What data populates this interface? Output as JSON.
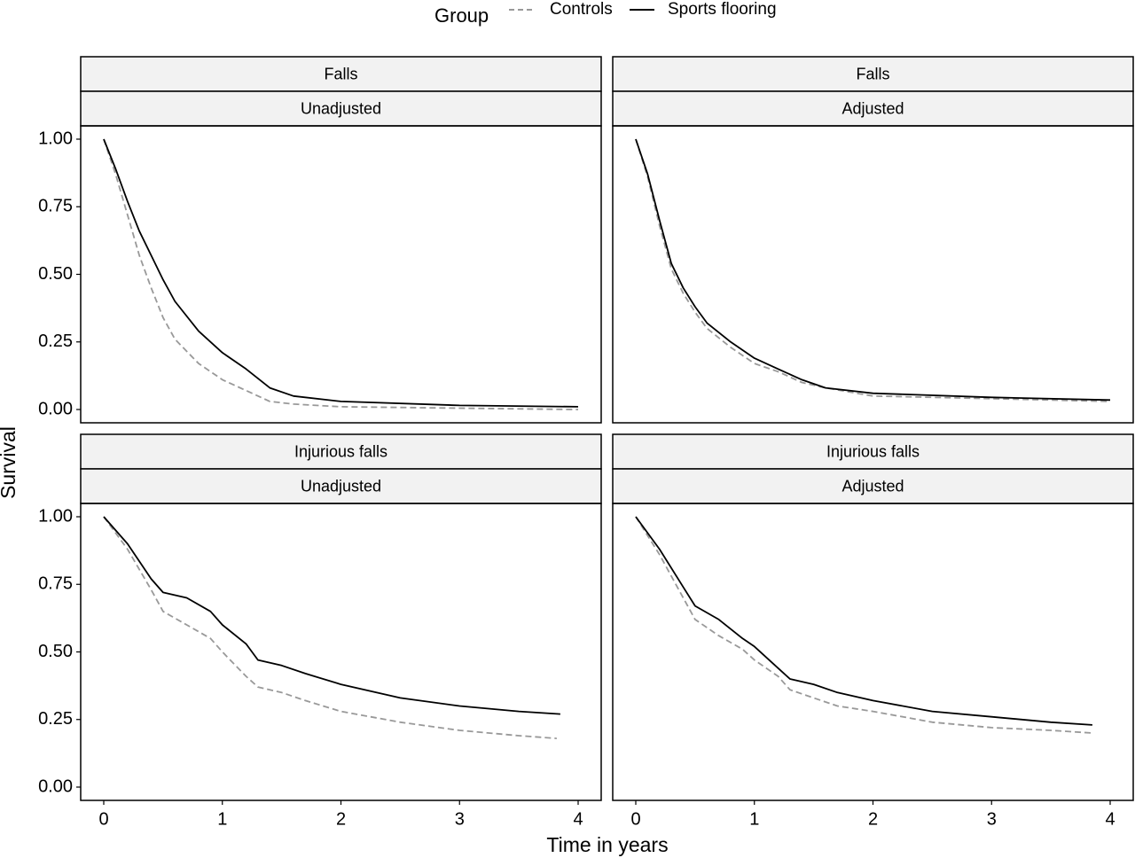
{
  "legend": {
    "title": "Group",
    "entries": [
      {
        "label": "Controls",
        "color": "#999999",
        "dash": "dashed"
      },
      {
        "label": "Sports flooring",
        "color": "#000000",
        "dash": "solid"
      }
    ]
  },
  "axes": {
    "xlabel": "Time in years",
    "ylabel": "Survival",
    "x_ticks": [
      "0",
      "1",
      "2",
      "3",
      "4"
    ],
    "y_ticks": [
      "0.00",
      "0.25",
      "0.50",
      "0.75",
      "1.00"
    ]
  },
  "chart_data": [
    {
      "type": "line",
      "strip_top": "Falls",
      "strip_bottom": "Unadjusted",
      "xlim": [
        0,
        4
      ],
      "ylim": [
        0,
        1
      ],
      "grid": false,
      "series": [
        {
          "name": "Controls",
          "points": [
            [
              0,
              1.0
            ],
            [
              0.1,
              0.87
            ],
            [
              0.2,
              0.72
            ],
            [
              0.3,
              0.57
            ],
            [
              0.4,
              0.45
            ],
            [
              0.5,
              0.34
            ],
            [
              0.6,
              0.26
            ],
            [
              0.8,
              0.17
            ],
            [
              1.0,
              0.11
            ],
            [
              1.2,
              0.07
            ],
            [
              1.4,
              0.03
            ],
            [
              1.6,
              0.02
            ],
            [
              2.0,
              0.01
            ],
            [
              3.0,
              0.005
            ],
            [
              4.0,
              0.0
            ]
          ]
        },
        {
          "name": "Sports flooring",
          "points": [
            [
              0,
              1.0
            ],
            [
              0.1,
              0.89
            ],
            [
              0.2,
              0.77
            ],
            [
              0.3,
              0.66
            ],
            [
              0.4,
              0.57
            ],
            [
              0.5,
              0.48
            ],
            [
              0.6,
              0.4
            ],
            [
              0.8,
              0.29
            ],
            [
              1.0,
              0.21
            ],
            [
              1.2,
              0.15
            ],
            [
              1.4,
              0.08
            ],
            [
              1.6,
              0.05
            ],
            [
              2.0,
              0.03
            ],
            [
              3.0,
              0.015
            ],
            [
              4.0,
              0.01
            ]
          ]
        }
      ]
    },
    {
      "type": "line",
      "strip_top": "Falls",
      "strip_bottom": "Adjusted",
      "xlim": [
        0,
        4
      ],
      "ylim": [
        0,
        1
      ],
      "grid": false,
      "series": [
        {
          "name": "Controls",
          "points": [
            [
              0,
              1.0
            ],
            [
              0.1,
              0.86
            ],
            [
              0.2,
              0.68
            ],
            [
              0.3,
              0.52
            ],
            [
              0.4,
              0.43
            ],
            [
              0.5,
              0.36
            ],
            [
              0.6,
              0.3
            ],
            [
              0.8,
              0.23
            ],
            [
              1.0,
              0.17
            ],
            [
              1.2,
              0.14
            ],
            [
              1.4,
              0.1
            ],
            [
              1.6,
              0.08
            ],
            [
              2.0,
              0.05
            ],
            [
              3.0,
              0.04
            ],
            [
              4.0,
              0.03
            ]
          ]
        },
        {
          "name": "Sports flooring",
          "points": [
            [
              0,
              1.0
            ],
            [
              0.1,
              0.87
            ],
            [
              0.2,
              0.7
            ],
            [
              0.3,
              0.54
            ],
            [
              0.4,
              0.45
            ],
            [
              0.5,
              0.38
            ],
            [
              0.6,
              0.32
            ],
            [
              0.8,
              0.25
            ],
            [
              1.0,
              0.19
            ],
            [
              1.2,
              0.15
            ],
            [
              1.4,
              0.11
            ],
            [
              1.6,
              0.08
            ],
            [
              2.0,
              0.06
            ],
            [
              3.0,
              0.045
            ],
            [
              4.0,
              0.035
            ]
          ]
        }
      ]
    },
    {
      "type": "line",
      "strip_top": "Injurious falls",
      "strip_bottom": "Unadjusted",
      "xlim": [
        0,
        4
      ],
      "ylim": [
        0,
        1
      ],
      "grid": false,
      "series": [
        {
          "name": "Controls",
          "points": [
            [
              0,
              1.0
            ],
            [
              0.2,
              0.88
            ],
            [
              0.4,
              0.73
            ],
            [
              0.5,
              0.65
            ],
            [
              0.7,
              0.6
            ],
            [
              0.9,
              0.55
            ],
            [
              1.0,
              0.5
            ],
            [
              1.2,
              0.41
            ],
            [
              1.3,
              0.37
            ],
            [
              1.5,
              0.35
            ],
            [
              1.7,
              0.32
            ],
            [
              2.0,
              0.28
            ],
            [
              2.5,
              0.24
            ],
            [
              3.0,
              0.21
            ],
            [
              3.5,
              0.19
            ],
            [
              3.82,
              0.18
            ]
          ]
        },
        {
          "name": "Sports flooring",
          "points": [
            [
              0,
              1.0
            ],
            [
              0.2,
              0.9
            ],
            [
              0.4,
              0.77
            ],
            [
              0.5,
              0.72
            ],
            [
              0.7,
              0.7
            ],
            [
              0.9,
              0.65
            ],
            [
              1.0,
              0.6
            ],
            [
              1.2,
              0.53
            ],
            [
              1.3,
              0.47
            ],
            [
              1.5,
              0.45
            ],
            [
              1.7,
              0.42
            ],
            [
              2.0,
              0.38
            ],
            [
              2.5,
              0.33
            ],
            [
              3.0,
              0.3
            ],
            [
              3.5,
              0.28
            ],
            [
              3.85,
              0.27
            ]
          ]
        }
      ]
    },
    {
      "type": "line",
      "strip_top": "Injurious falls",
      "strip_bottom": "Adjusted",
      "xlim": [
        0,
        4
      ],
      "ylim": [
        0,
        1
      ],
      "grid": false,
      "series": [
        {
          "name": "Controls",
          "points": [
            [
              0,
              1.0
            ],
            [
              0.2,
              0.86
            ],
            [
              0.4,
              0.7
            ],
            [
              0.5,
              0.62
            ],
            [
              0.7,
              0.56
            ],
            [
              0.9,
              0.51
            ],
            [
              1.0,
              0.47
            ],
            [
              1.2,
              0.41
            ],
            [
              1.3,
              0.36
            ],
            [
              1.5,
              0.33
            ],
            [
              1.7,
              0.3
            ],
            [
              2.0,
              0.28
            ],
            [
              2.5,
              0.24
            ],
            [
              3.0,
              0.22
            ],
            [
              3.5,
              0.21
            ],
            [
              3.85,
              0.2
            ]
          ]
        },
        {
          "name": "Sports flooring",
          "points": [
            [
              0,
              1.0
            ],
            [
              0.2,
              0.88
            ],
            [
              0.4,
              0.74
            ],
            [
              0.5,
              0.67
            ],
            [
              0.7,
              0.62
            ],
            [
              0.9,
              0.55
            ],
            [
              1.0,
              0.52
            ],
            [
              1.2,
              0.44
            ],
            [
              1.3,
              0.4
            ],
            [
              1.5,
              0.38
            ],
            [
              1.7,
              0.35
            ],
            [
              2.0,
              0.32
            ],
            [
              2.5,
              0.28
            ],
            [
              3.0,
              0.26
            ],
            [
              3.5,
              0.24
            ],
            [
              3.85,
              0.23
            ]
          ]
        }
      ]
    }
  ]
}
